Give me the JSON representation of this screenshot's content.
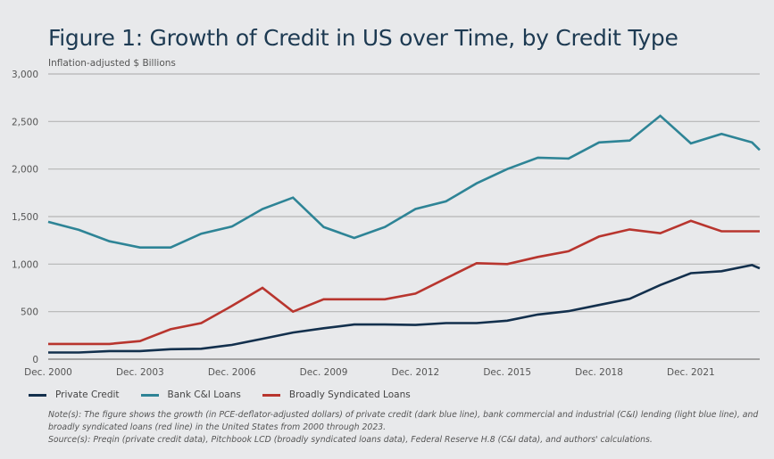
{
  "title": "Figure 1: Growth of Credit in US over Time, by Credit Type",
  "notes": {
    "note": "Note(s): The figure shows the growth (in PCE-deflator-adjusted dollars) of private credit (dark blue line), bank commercial and industrial (C&I) lending (light blue line), and broadly syndicated loans (red line) in the United States from 2000 through 2023.",
    "source": "Source(s): Preqin (private credit data), Pitchbook LCD (broadly syndicated loans data), Federal Reserve H.8 (C&I data), and authors' calculations."
  },
  "chart_data": {
    "type": "line",
    "title": "Figure 1: Growth of Credit in US over Time, by Credit Type",
    "xlabel": "",
    "ylabel": "Inflation-adjusted $ Billions",
    "ylim": [
      0,
      3000
    ],
    "yticks": [
      0,
      500,
      1000,
      1500,
      2000,
      2500,
      3000
    ],
    "ytick_labels": [
      "0",
      "500",
      "1,000",
      "1,500",
      "2,000",
      "2,500",
      "3,000"
    ],
    "xlim": [
      2000,
      2023.25
    ],
    "xticks": [
      2000,
      2003,
      2006,
      2009,
      2012,
      2015,
      2018,
      2021
    ],
    "xtick_labels": [
      "Dec. 2000",
      "Dec. 2003",
      "Dec. 2006",
      "Dec. 2009",
      "Dec. 2012",
      "Dec. 2015",
      "Dec. 2018",
      "Dec. 2021"
    ],
    "grid": "horizontal",
    "legend_position": "bottom-left",
    "x": [
      2000,
      2001,
      2002,
      2003,
      2004,
      2005,
      2006,
      2007,
      2008,
      2009,
      2010,
      2011,
      2012,
      2013,
      2014,
      2015,
      2016,
      2017,
      2018,
      2019,
      2020,
      2021,
      2022,
      2023,
      2023.25
    ],
    "series": [
      {
        "name": "Private Credit",
        "color": "#13304d",
        "values": [
          70,
          70,
          85,
          85,
          105,
          110,
          150,
          215,
          280,
          325,
          365,
          365,
          360,
          380,
          380,
          405,
          470,
          505,
          570,
          635,
          780,
          905,
          925,
          990,
          955
        ]
      },
      {
        "name": "Bank C&I Loans",
        "color": "#2e8496",
        "values": [
          1445,
          1360,
          1240,
          1175,
          1175,
          1320,
          1395,
          1580,
          1700,
          1390,
          1275,
          1390,
          1580,
          1660,
          1850,
          2000,
          2120,
          2110,
          2280,
          2300,
          2560,
          2270,
          2370,
          2280,
          2200
        ]
      },
      {
        "name": "Broadly Syndicated Loans",
        "color": "#b8352e",
        "values": [
          160,
          160,
          160,
          190,
          315,
          380,
          560,
          750,
          500,
          630,
          630,
          630,
          690,
          850,
          1010,
          1000,
          1075,
          1135,
          1290,
          1365,
          1325,
          1455,
          1345,
          1345,
          1345
        ]
      }
    ]
  }
}
